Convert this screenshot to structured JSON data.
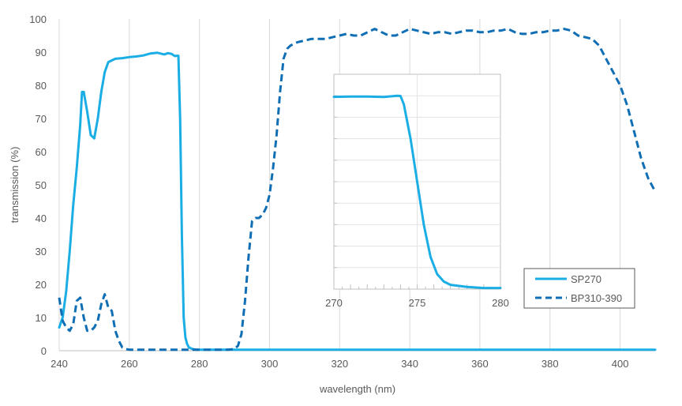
{
  "chart_data": {
    "type": "line",
    "title": "",
    "xlabel": "wavelength (nm)",
    "ylabel": "transmission (%)",
    "xlim": [
      240,
      410
    ],
    "ylim": [
      0,
      100
    ],
    "x_ticks": [
      "240",
      "260",
      "280",
      "300",
      "320",
      "340",
      "360",
      "380",
      "400"
    ],
    "y_ticks": [
      "0",
      "10",
      "20",
      "30",
      "40",
      "50",
      "60",
      "70",
      "80",
      "90",
      "100"
    ],
    "grid": "vertical",
    "legend_position": "inset-bottom-right",
    "colors": {
      "sp270": "#1aaee5",
      "bp310": "#0f6eb4",
      "axis": "#d9d9d9",
      "text": "#595959"
    },
    "series": [
      {
        "name": "SP270",
        "style": "solid",
        "x": [
          240,
          241,
          242,
          243,
          244,
          245,
          246,
          246.5,
          247,
          248,
          249,
          250,
          251,
          252,
          253,
          254,
          255,
          256,
          258,
          260,
          262,
          264,
          265,
          266,
          268,
          270,
          271,
          272,
          273,
          273.5,
          274,
          274.5,
          275,
          275.5,
          276,
          276.5,
          277,
          278,
          279,
          280,
          290,
          300,
          320,
          340,
          360,
          380,
          400,
          410
        ],
        "y": [
          7,
          10,
          18,
          30,
          44,
          55,
          68,
          78,
          78,
          72,
          65,
          64,
          70,
          78,
          84,
          87,
          87.5,
          88,
          88.2,
          88.5,
          88.7,
          89,
          89.3,
          89.6,
          89.8,
          89.3,
          89.7,
          89.5,
          88.8,
          88.9,
          88.9,
          70,
          35,
          10,
          4,
          2,
          1,
          0.5,
          0.3,
          0.3,
          0.3,
          0.3,
          0.3,
          0.3,
          0.3,
          0.3,
          0.3,
          0.3
        ]
      },
      {
        "name": "BP310-390",
        "style": "dashed",
        "x": [
          240,
          241,
          242,
          243,
          244,
          245,
          246,
          247,
          248,
          249,
          250,
          251,
          252,
          253,
          254,
          255,
          256,
          257,
          258,
          259,
          260,
          262,
          270,
          280,
          288,
          290,
          291,
          292,
          293,
          294,
          295,
          296,
          297,
          298,
          299,
          300,
          301,
          302,
          303,
          304,
          305,
          306,
          308,
          310,
          312,
          314,
          316,
          318,
          320,
          322,
          324,
          326,
          328,
          330,
          332,
          334,
          336,
          338,
          340,
          342,
          344,
          346,
          348,
          350,
          352,
          354,
          356,
          358,
          360,
          362,
          364,
          366,
          368,
          370,
          372,
          374,
          376,
          378,
          380,
          382,
          384,
          386,
          388,
          390,
          392,
          394,
          396,
          398,
          400,
          402,
          404,
          406,
          408,
          410
        ],
        "y": [
          16,
          9,
          7,
          6,
          8,
          15,
          16,
          10,
          6,
          6,
          7,
          9,
          14,
          17,
          13,
          12,
          6,
          3,
          1,
          0.5,
          0.3,
          0.3,
          0.3,
          0.3,
          0.3,
          0.5,
          1.5,
          5,
          15,
          28,
          39,
          40,
          40,
          41,
          43,
          47,
          55,
          65,
          78,
          88,
          91,
          92,
          93,
          93.5,
          94,
          94,
          94,
          94.5,
          95,
          95.5,
          95,
          95,
          96,
          97,
          96,
          95,
          95,
          96,
          97,
          96.5,
          96,
          95.5,
          96,
          96,
          95.5,
          96,
          96.5,
          96.5,
          96,
          96,
          96.5,
          96.5,
          97,
          96,
          95.5,
          95.5,
          96,
          96,
          96.5,
          96.5,
          97,
          96.5,
          95,
          94.5,
          94,
          92,
          88,
          84,
          80,
          74,
          66,
          58,
          52,
          48
        ]
      }
    ],
    "inset": {
      "type": "line",
      "xlim": [
        270,
        280
      ],
      "x_ticks": [
        "270",
        "275",
        "280"
      ],
      "y_range_hidden": [
        0,
        100
      ],
      "series": [
        {
          "name": "SP270",
          "x": [
            270,
            271,
            272,
            273,
            273.4,
            273.8,
            274.0,
            274.2,
            274.6,
            275.0,
            275.4,
            275.8,
            276.2,
            276.6,
            277.0,
            278.0,
            279.0,
            280.0
          ],
          "y": [
            89.5,
            89.6,
            89.6,
            89.4,
            89.7,
            90.0,
            89.9,
            86.0,
            70.0,
            50.0,
            30.0,
            15.0,
            7.0,
            3.5,
            2.0,
            1.0,
            0.5,
            0.5
          ]
        }
      ]
    },
    "legend": [
      {
        "label": "SP270",
        "style": "solid"
      },
      {
        "label": "BP310-390",
        "style": "dashed"
      }
    ]
  }
}
